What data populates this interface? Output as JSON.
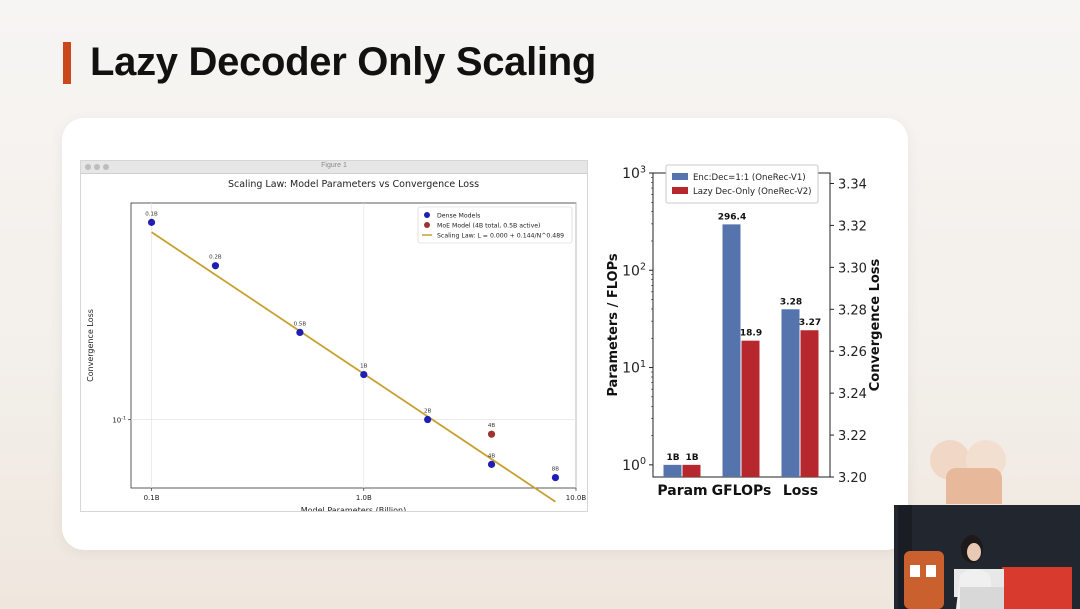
{
  "slide": {
    "title": "Lazy Decoder Only Scaling"
  },
  "figure_window": {
    "title": "Figure 1"
  },
  "chart_data": [
    {
      "type": "scatter",
      "title": "Scaling Law: Model Parameters vs Convergence Loss",
      "xlabel": "Model Parameters (Billion)",
      "ylabel": "Convergence Loss",
      "x_scale": "log",
      "y_scale": "log",
      "xlim": [
        0.08,
        10
      ],
      "ylim": [
        0.058,
        0.56
      ],
      "x_tick_labels": [
        "0.1B",
        "1.0B",
        "10.0B"
      ],
      "y_tick_labels": [
        "10^-1"
      ],
      "grid": true,
      "legend_position": "top-right",
      "series": [
        {
          "name": "Dense Models",
          "kind": "points",
          "color": "#1f1fb4",
          "points": [
            {
              "x": 0.1,
              "y": 0.48,
              "label": "0.1B"
            },
            {
              "x": 0.2,
              "y": 0.34,
              "label": "0.2B"
            },
            {
              "x": 0.5,
              "y": 0.2,
              "label": "0.5B"
            },
            {
              "x": 1.0,
              "y": 0.143,
              "label": "1B"
            },
            {
              "x": 2.0,
              "y": 0.1,
              "label": "2B"
            },
            {
              "x": 4.0,
              "y": 0.07,
              "label": "4B"
            },
            {
              "x": 8.0,
              "y": 0.063,
              "label": "8B"
            }
          ]
        },
        {
          "name": "MoE Model (4B total, 0.5B active)",
          "kind": "points",
          "color": "#a03232",
          "points": [
            {
              "x": 4.0,
              "y": 0.089,
              "label": "4B"
            }
          ]
        },
        {
          "name": "Scaling Law: L = 0.000 + 0.144/N^0.489",
          "kind": "line",
          "color": "#c8a030",
          "x": [
            0.1,
            8.0
          ],
          "y": [
            0.444,
            0.052
          ]
        }
      ]
    },
    {
      "type": "bar",
      "categories": [
        "Param",
        "GFLOPs",
        "Loss"
      ],
      "ylabel_left": "Parameters / FLOPs",
      "ylabel_right": "Convergence Loss",
      "left_axis": {
        "scale": "log",
        "range": [
          0.75,
          1000
        ],
        "tick_values": [
          1,
          10,
          100,
          1000
        ],
        "tick_labels": [
          "10^0",
          "10^1",
          "10^2",
          "10^3"
        ]
      },
      "right_axis": {
        "range": [
          3.2,
          3.345
        ],
        "ticks": [
          "3.20",
          "3.22",
          "3.24",
          "3.26",
          "3.28",
          "3.30",
          "3.32",
          "3.34"
        ]
      },
      "legend_position": "top",
      "series": [
        {
          "name": "Enc:Dec=1:1 (OneRec-V1)",
          "color": "#5574ae",
          "values": [
            1,
            296.4,
            3.28
          ],
          "labels": [
            "1B",
            "296.4",
            "3.28"
          ],
          "axis": [
            "left",
            "left",
            "right"
          ]
        },
        {
          "name": "Lazy Dec-Only (OneRec-V2)",
          "color": "#b7282e",
          "values": [
            1,
            18.9,
            3.27
          ],
          "labels": [
            "1B",
            "18.9",
            "3.27"
          ],
          "axis": [
            "left",
            "left",
            "right"
          ]
        }
      ]
    }
  ]
}
